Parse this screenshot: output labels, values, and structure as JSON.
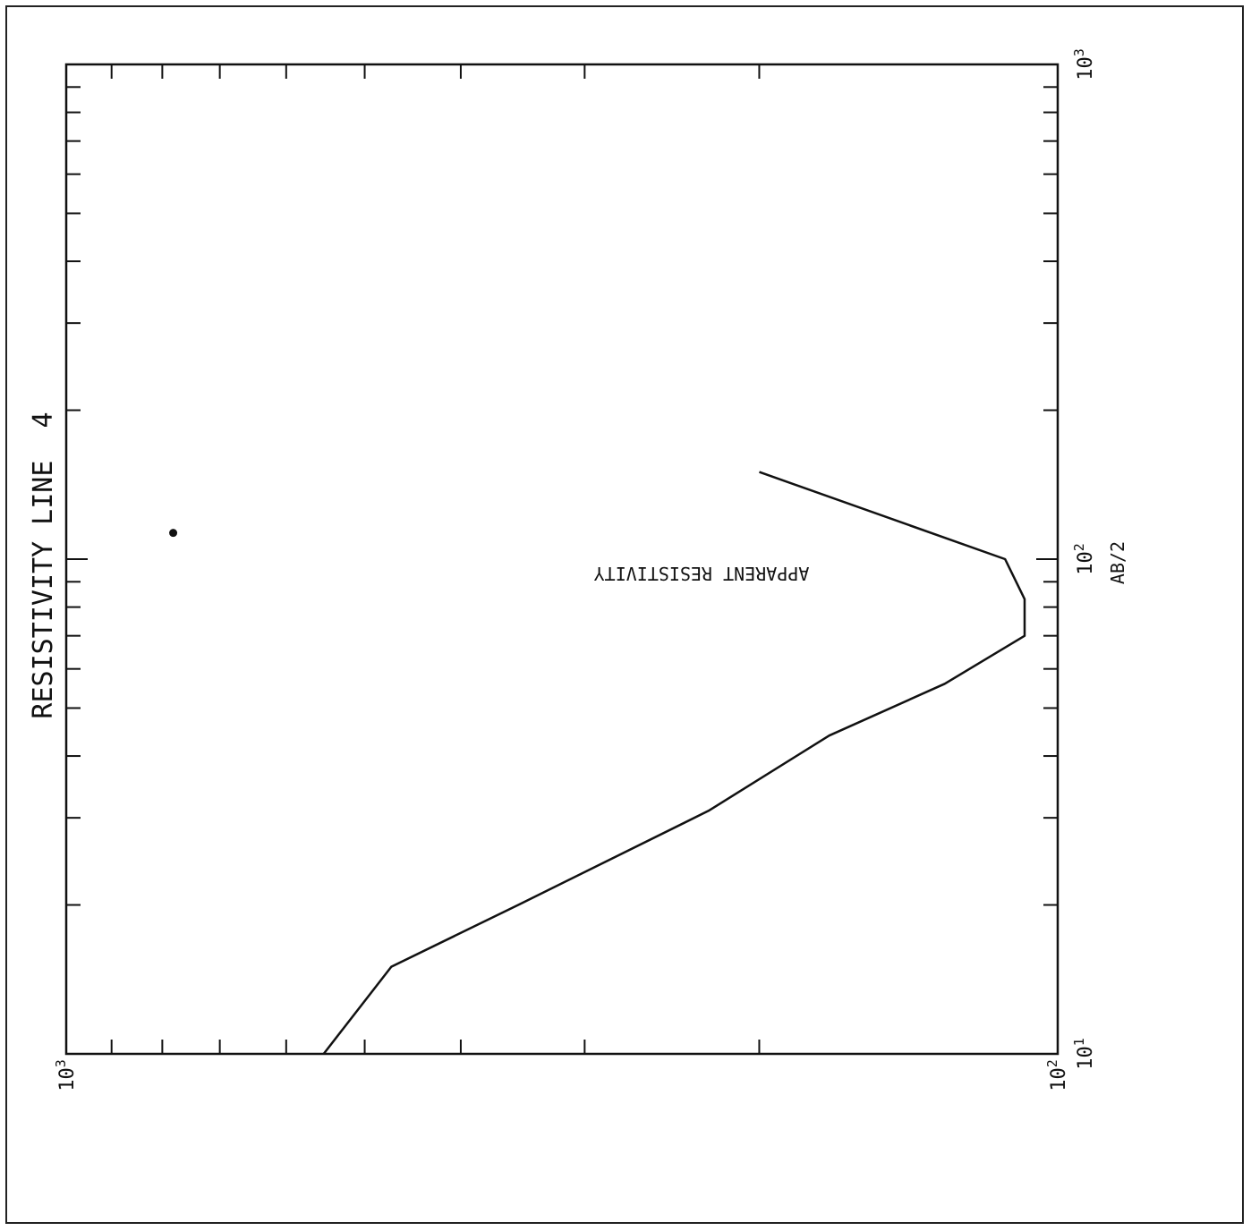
{
  "chart_data": {
    "type": "line",
    "orientation": "rotated-90-clockwise",
    "title": "RESISTIVITY LINE  4",
    "xlabel": "AB/2",
    "ylabel": "APPARENT RESISTIVITY",
    "x_scale": "log",
    "y_scale": "log",
    "xlim": [
      10,
      1000
    ],
    "ylim": [
      100,
      1000
    ],
    "x_tick_labels": [
      {
        "value": 10,
        "base": "10",
        "exp": "1"
      },
      {
        "value": 100,
        "base": "10",
        "exp": "2"
      },
      {
        "value": 1000,
        "base": "10",
        "exp": "3"
      }
    ],
    "y_tick_labels": [
      {
        "value": 100,
        "base": "10",
        "exp": "2"
      },
      {
        "value": 1000,
        "base": "10",
        "exp": "3"
      }
    ],
    "grid": false,
    "series": [
      {
        "x": [
          10,
          15,
          20,
          31,
          44,
          56,
          70,
          83,
          100,
          150
        ],
        "y": [
          550,
          470,
          350,
          225,
          170,
          130,
          108,
          108,
          113,
          200
        ]
      }
    ],
    "annotations": [
      {
        "x": 113,
        "y": 780,
        "marker": "dot"
      }
    ]
  }
}
